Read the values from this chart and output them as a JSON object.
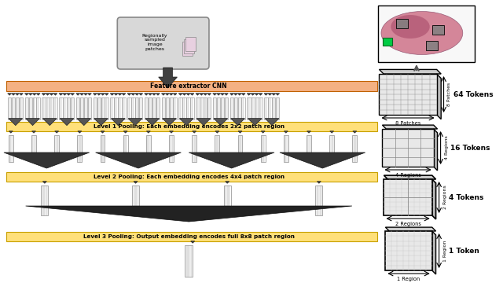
{
  "bg_color": "#ffffff",
  "feature_bar_color": "#f4b183",
  "level_bar_color": "#ffe07a",
  "level_bar_border": "#c8a000",
  "arrow_color": "#404040",
  "input_box_text": "Regionally\nsampled\nimage\npatches",
  "feature_text": "Feature extractor CNN",
  "level1_text": "Level 1 Pooling: Each embedding encodes 2x2 patch region",
  "level2_text": "Level 2 Pooling: Each embedding encodes 4x4 patch region",
  "level3_text": "Level 3 Pooling: Output embedding encodes full 8x8 patch region",
  "label_64": "64 Tokens",
  "label_16": "16 Tokens",
  "label_4": "4 Tokens",
  "label_1": "1 Token",
  "patches_label": "8 Patches",
  "regions4_label": "4 Regions",
  "regions2_label": "2 Regions",
  "region1_label": "1 Region",
  "patches_side": "8 Patches",
  "regions4_side": "4 Regions",
  "regions2_side": "2 Regions",
  "region1_side": "1 Region"
}
